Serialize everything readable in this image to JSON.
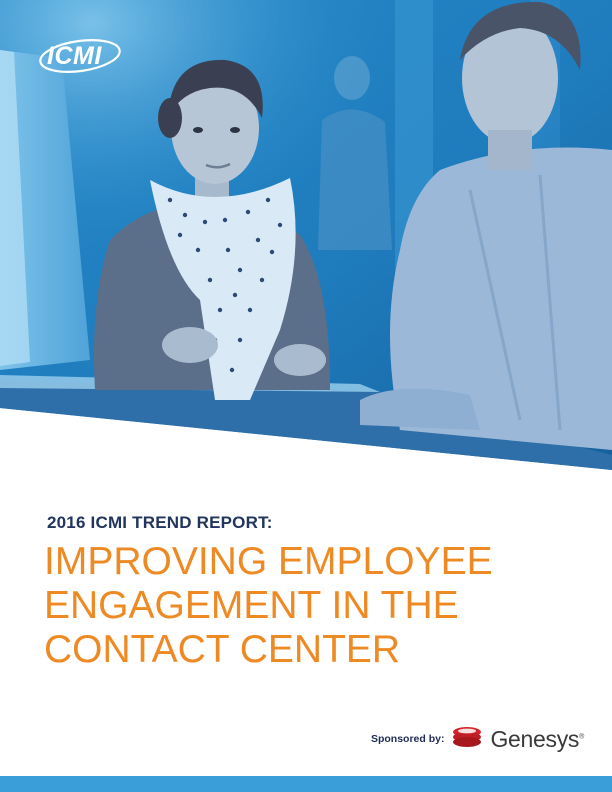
{
  "logo": {
    "text": "ICMI"
  },
  "report": {
    "kicker": "2016 ICMI TREND REPORT:",
    "title_lines": [
      "IMPROVING EMPLOYEE",
      "ENGAGEMENT IN THE",
      "CONTACT CENTER"
    ]
  },
  "sponsor": {
    "label": "Sponsored by:",
    "brand": "Genesys",
    "brand_mark": "®"
  },
  "colors": {
    "hero_blue": "#1f7fc0",
    "kicker_navy": "#22355e",
    "title_orange": "#ee8a24",
    "footer_blue": "#3a9fd8",
    "genesys_red": "#d6232a"
  },
  "icons": {
    "cover_photo": "office-conversation-photo",
    "logo": "icmi-logo-icon",
    "sponsor_logo": "genesys-logo-icon"
  }
}
